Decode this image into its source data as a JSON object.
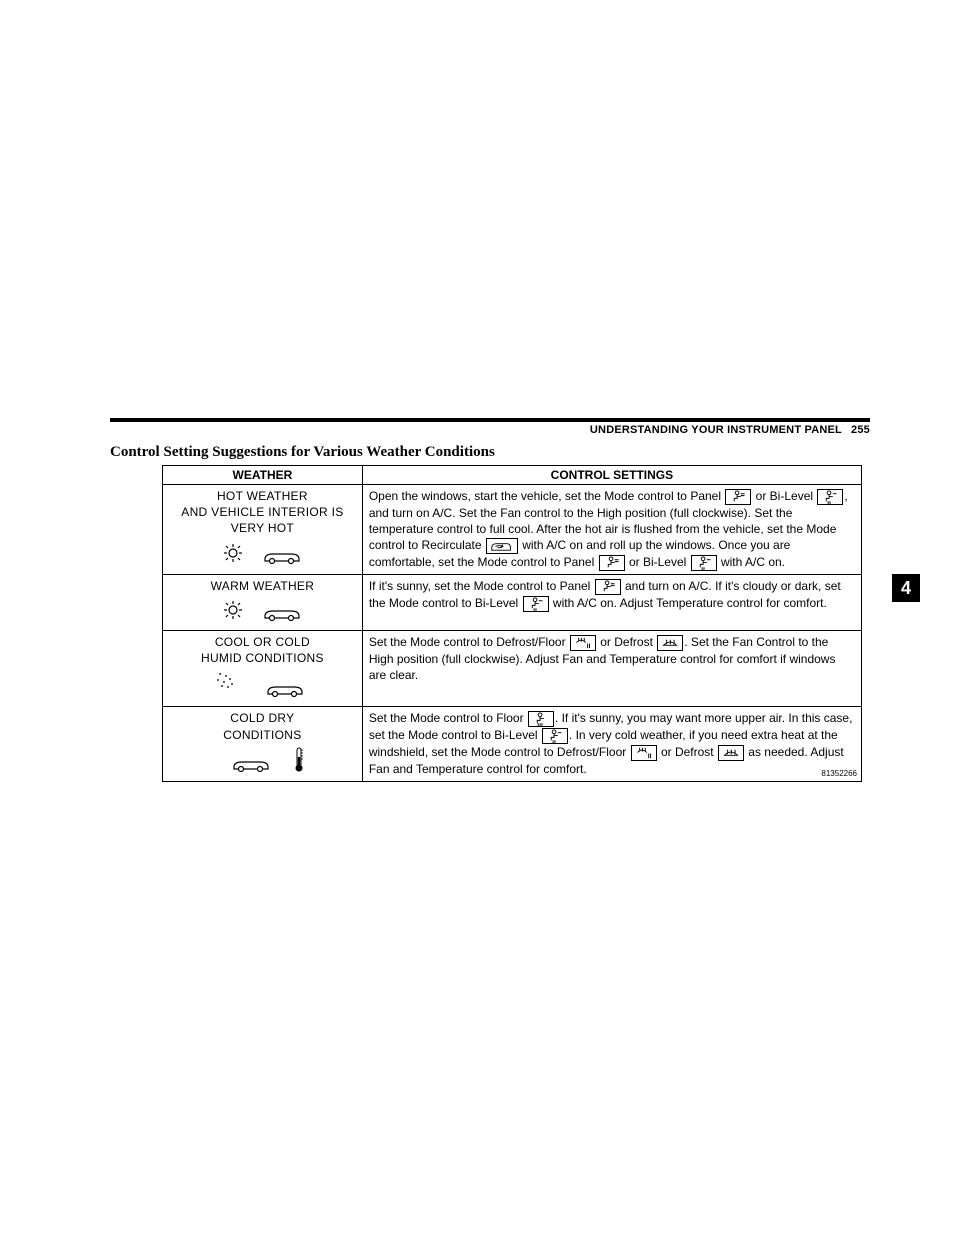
{
  "header": {
    "title": "UNDERSTANDING YOUR INSTRUMENT PANEL",
    "page_number": "255"
  },
  "section_title": "Control Setting Suggestions for Various Weather Conditions",
  "chapter_tab": "4",
  "table": {
    "columns": [
      "WEATHER",
      "CONTROL SETTINGS"
    ],
    "rows": [
      {
        "weather_lines": [
          "HOT WEATHER",
          "AND VEHICLE INTERIOR IS",
          "VERY HOT"
        ],
        "graphic": "sun-car",
        "settings_parts": [
          {
            "t": "Open the windows, start the vehicle, set the Mode control to Panel "
          },
          {
            "icon": "panel"
          },
          {
            "t": " or Bi-Level "
          },
          {
            "icon": "bilevel"
          },
          {
            "t": ", and turn on A/C. Set the Fan control to the High position (full clockwise). Set the temperature control to full cool. After the hot air is flushed from the vehicle, set the Mode control to Recirculate "
          },
          {
            "icon": "recirc"
          },
          {
            "t": " with A/C on and roll up the windows. Once you are comfortable, set the Mode control to Panel "
          },
          {
            "icon": "panel"
          },
          {
            "t": " or Bi-Level "
          },
          {
            "icon": "bilevel"
          },
          {
            "t": " with A/C on."
          }
        ]
      },
      {
        "weather_lines": [
          "WARM WEATHER"
        ],
        "graphic": "sun-car",
        "settings_parts": [
          {
            "t": "If it's sunny, set the Mode control to Panel "
          },
          {
            "icon": "panel"
          },
          {
            "t": " and turn on A/C. If it's cloudy or dark, set the Mode control to Bi-Level "
          },
          {
            "icon": "bilevel"
          },
          {
            "t": " with A/C on. Adjust Temperature control for comfort."
          }
        ]
      },
      {
        "weather_lines": [
          "COOL OR COLD",
          "HUMID CONDITIONS"
        ],
        "graphic": "rain-car",
        "settings_parts": [
          {
            "t": "Set the Mode control to Defrost/Floor "
          },
          {
            "icon": "defrostfloor"
          },
          {
            "t": " or Defrost "
          },
          {
            "icon": "defrost"
          },
          {
            "t": ". Set the Fan Control to the High position (full clockwise). Adjust Fan and Temperature control for comfort if windows are clear."
          }
        ]
      },
      {
        "weather_lines": [
          "COLD DRY",
          "CONDITIONS"
        ],
        "graphic": "thermo-car",
        "settings_parts": [
          {
            "t": "Set the Mode control to Floor "
          },
          {
            "icon": "floor"
          },
          {
            "t": ". If it's sunny, you may want more upper air. In this case, set the Mode control to Bi-Level "
          },
          {
            "icon": "bilevel"
          },
          {
            "t": ". In very cold weather, if you need extra heat at the windshield, set the Mode control to Defrost/Floor "
          },
          {
            "icon": "defrostfloor"
          },
          {
            "t": " or Defrost "
          },
          {
            "icon": "defrost"
          },
          {
            "t": " as needed. Adjust Fan and Temperature control for comfort."
          }
        ]
      }
    ],
    "ref_number": "81352266"
  },
  "icons": {
    "panel": "panel-icon",
    "bilevel": "bilevel-icon",
    "recirc": "recirc-icon",
    "defrostfloor": "defrost-floor-icon",
    "defrost": "defrost-icon",
    "floor": "floor-icon"
  },
  "colors": {
    "text": "#000000",
    "background": "#ffffff",
    "rule": "#000000"
  }
}
